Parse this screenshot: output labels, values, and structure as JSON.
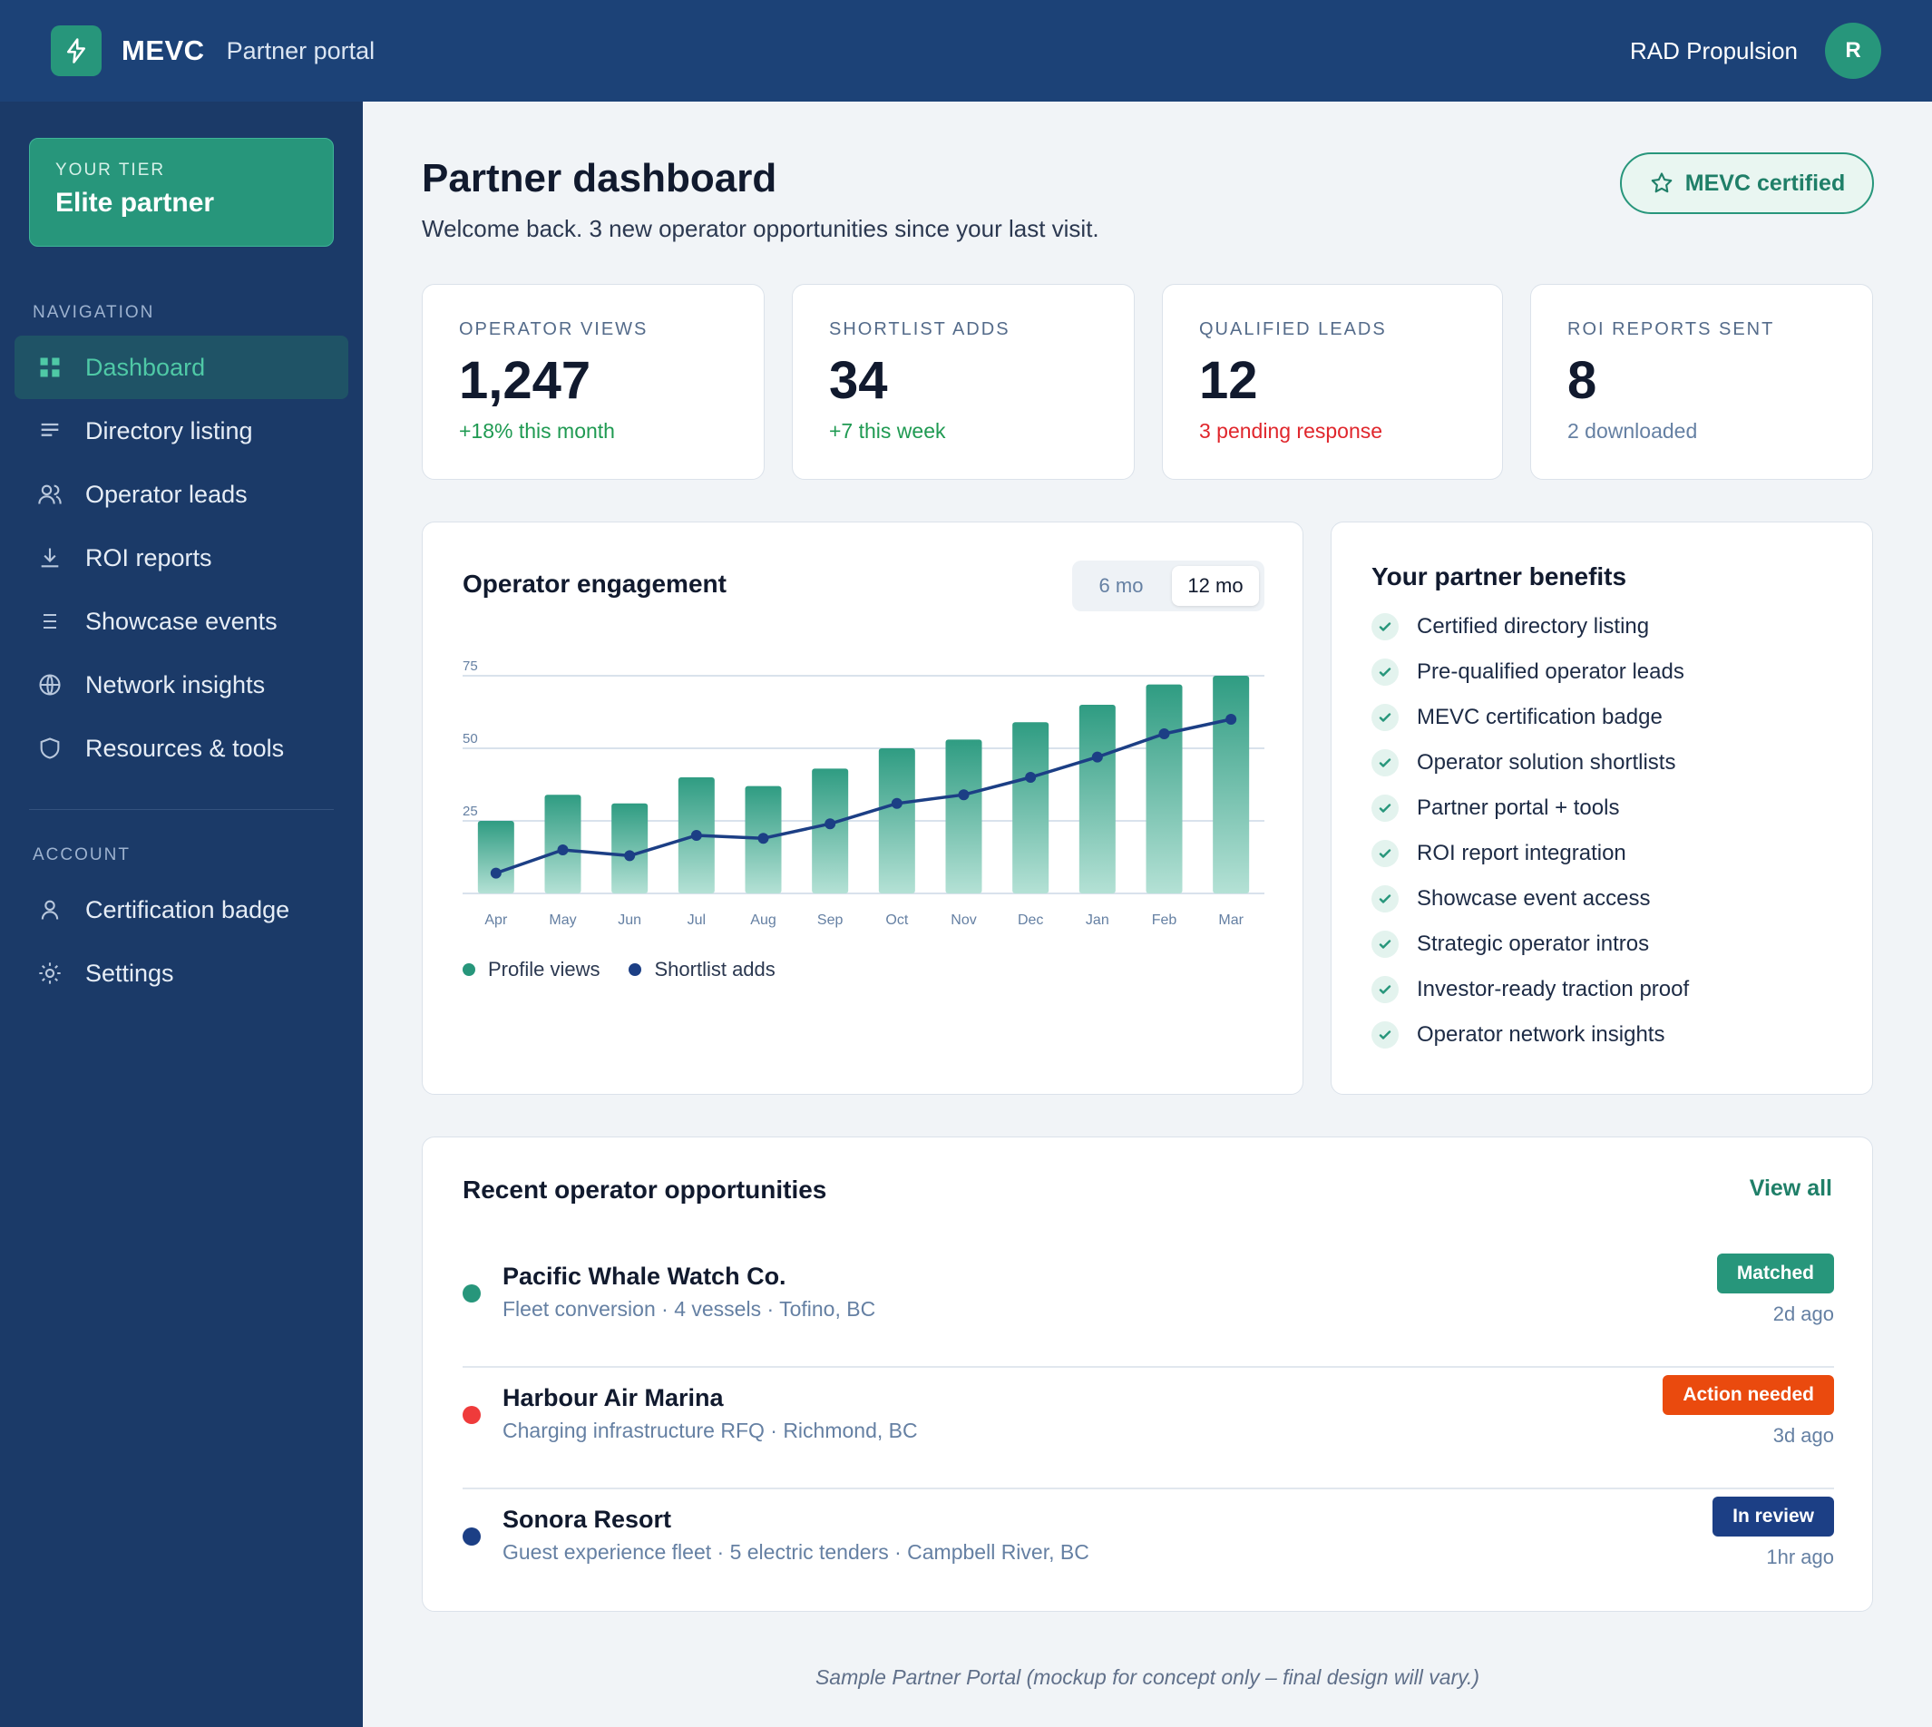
{
  "topbar": {
    "brand": "MEVC",
    "portal_label": "Partner portal",
    "user_name": "RAD Propulsion",
    "avatar_initial": "R"
  },
  "sidebar": {
    "tier_label": "YOUR TIER",
    "tier_name": "Elite partner",
    "nav_heading": "NAVIGATION",
    "nav_items": [
      {
        "label": "Dashboard",
        "icon": "grid-icon",
        "active": true
      },
      {
        "label": "Directory listing",
        "icon": "lines-icon"
      },
      {
        "label": "Operator leads",
        "icon": "users-icon"
      },
      {
        "label": "ROI reports",
        "icon": "download-icon"
      },
      {
        "label": "Showcase events",
        "icon": "list-icon"
      },
      {
        "label": "Network insights",
        "icon": "globe-icon"
      },
      {
        "label": "Resources & tools",
        "icon": "shield-icon"
      }
    ],
    "account_heading": "ACCOUNT",
    "account_items": [
      {
        "label": "Certification badge",
        "icon": "user-icon"
      },
      {
        "label": "Settings",
        "icon": "gear-icon"
      }
    ]
  },
  "header": {
    "title": "Partner dashboard",
    "subtitle": "Welcome back. 3 new operator opportunities since your last visit.",
    "cert_label": "MEVC certified"
  },
  "stats": [
    {
      "label": "OPERATOR VIEWS",
      "value": "1,247",
      "note": "+18% this month",
      "note_color": "#1f9a52"
    },
    {
      "label": "SHORTLIST ADDS",
      "value": "34",
      "note": "+7 this week",
      "note_color": "#1f9a52"
    },
    {
      "label": "QUALIFIED LEADS",
      "value": "12",
      "note": "3 pending response",
      "note_color": "#e0262c"
    },
    {
      "label": "ROI REPORTS SENT",
      "value": "8",
      "note": "2 downloaded",
      "note_color": "#6580a3"
    }
  ],
  "engagement": {
    "title": "Operator engagement",
    "toggle_options": [
      "6 mo",
      "12 mo"
    ],
    "toggle_selected": "12 mo"
  },
  "chart_data": {
    "type": "bar",
    "title": "Operator engagement",
    "categories": [
      "Apr",
      "May",
      "Jun",
      "Jul",
      "Aug",
      "Sep",
      "Oct",
      "Nov",
      "Dec",
      "Jan",
      "Feb",
      "Mar"
    ],
    "y_ticks": [
      "25",
      "50",
      "75"
    ],
    "ylim": [
      0,
      75
    ],
    "grid": true,
    "legend_position": "bottom-left",
    "series": [
      {
        "name": "Profile views",
        "type": "bar",
        "color": "#27967b",
        "values": [
          25,
          34,
          31,
          40,
          37,
          43,
          50,
          53,
          59,
          65,
          72,
          75
        ]
      },
      {
        "name": "Shortlist adds",
        "type": "line",
        "color": "#1c3f85",
        "values": [
          7,
          15,
          13,
          20,
          19,
          24,
          31,
          34,
          40,
          47,
          55,
          60
        ]
      }
    ]
  },
  "benefits": {
    "title": "Your partner benefits",
    "items": [
      "Certified directory listing",
      "Pre-qualified operator leads",
      "MEVC certification badge",
      "Operator solution shortlists",
      "Partner portal + tools",
      "ROI report integration",
      "Showcase event access",
      "Strategic operator intros",
      "Investor-ready traction proof",
      "Operator network insights"
    ]
  },
  "opportunities": {
    "title": "Recent operator opportunities",
    "view_all": "View all",
    "rows": [
      {
        "name": "Pacific Whale Watch Co.",
        "meta": "Fleet conversion · 4 vessels · Tofino, BC",
        "badge": "Matched",
        "badge_color": "#27967b",
        "dot_color": "#27967b",
        "time": "2d ago"
      },
      {
        "name": "Harbour Air Marina",
        "meta": "Charging infrastructure RFQ · Richmond, BC",
        "badge": "Action needed",
        "badge_color": "#ea4a0e",
        "dot_color": "#ef3b3b",
        "time": "3d ago"
      },
      {
        "name": "Sonora Resort",
        "meta": "Guest experience fleet · 5 electric tenders · Campbell River, BC",
        "badge": "In review",
        "badge_color": "#1c3f85",
        "dot_color": "#1c3f85",
        "time": "1hr ago"
      }
    ]
  },
  "footer": "Sample Partner Portal (mockup for concept only – final design will vary.)"
}
